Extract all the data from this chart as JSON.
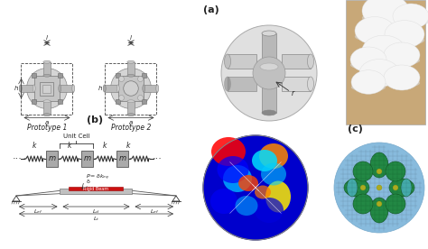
{
  "figure_width": 4.74,
  "figure_height": 2.76,
  "dpi": 100,
  "bg_color": "#ffffff",
  "label_a": "(a)",
  "label_b": "(b)",
  "label_c": "(c)",
  "proto1_label": "Prototype 1",
  "proto2_label": "Prototype 2",
  "unit_cell_label": "Unit Cell",
  "gray": "#b8b8b8",
  "dgray": "#787878",
  "lgray": "#d8d8d8",
  "red_color": "#cc1111",
  "beam_gray": "#bbbbbb",
  "spring_color": "#333333",
  "mass_color": "#aaaaaa",
  "fem_blue_dark": "#0000aa",
  "fem_blue": "#0055ff",
  "fem_cyan": "#00ccff",
  "fem_green": "#00cc44",
  "fem_yellow": "#ffdd00",
  "fem_orange": "#ff7700",
  "fem_red": "#ff1100",
  "mesh_bg": "#88bbdd",
  "mesh_green": "#22aa44",
  "mesh_dark_green": "#116622"
}
